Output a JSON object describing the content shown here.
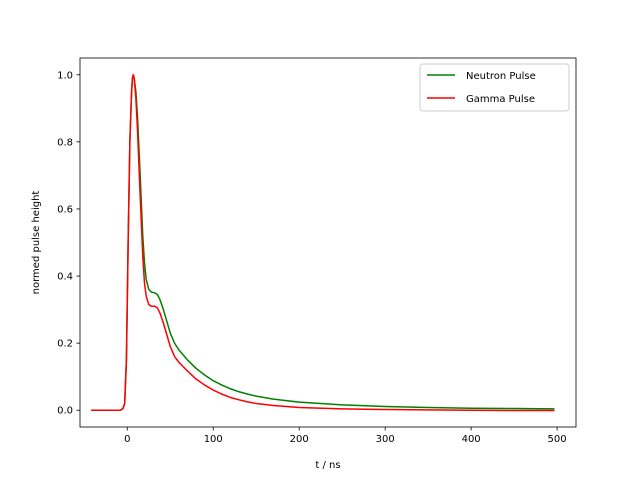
{
  "chart_data": {
    "type": "line",
    "title": "",
    "xlabel": "t / ns",
    "ylabel": "normed pulse height",
    "xlim": [
      -55,
      522
    ],
    "ylim": [
      -0.05,
      1.05
    ],
    "x_ticks": [
      0,
      100,
      200,
      300,
      400,
      500
    ],
    "y_ticks": [
      0.0,
      0.2,
      0.4,
      0.6,
      0.8,
      1.0
    ],
    "x_tick_labels": [
      "0",
      "100",
      "200",
      "300",
      "400",
      "500"
    ],
    "y_tick_labels": [
      "0.0",
      "0.2",
      "0.4",
      "0.6",
      "0.8",
      "1.0"
    ],
    "grid": false,
    "legend_position": "top-right",
    "series": [
      {
        "name": "Neutron Pulse",
        "color": "#008000",
        "points": [
          [
            -42,
            0.0
          ],
          [
            -20,
            0.0
          ],
          [
            -8,
            0.0
          ],
          [
            -5,
            0.005
          ],
          [
            -3,
            0.02
          ],
          [
            -1,
            0.15
          ],
          [
            1,
            0.5
          ],
          [
            3,
            0.8
          ],
          [
            5,
            0.95
          ],
          [
            6,
            0.99
          ],
          [
            7,
            1.0
          ],
          [
            8,
            0.99
          ],
          [
            10,
            0.95
          ],
          [
            12,
            0.87
          ],
          [
            15,
            0.7
          ],
          [
            18,
            0.52
          ],
          [
            20,
            0.44
          ],
          [
            22,
            0.39
          ],
          [
            25,
            0.36
          ],
          [
            28,
            0.352
          ],
          [
            32,
            0.35
          ],
          [
            35,
            0.345
          ],
          [
            38,
            0.33
          ],
          [
            42,
            0.3
          ],
          [
            46,
            0.265
          ],
          [
            50,
            0.23
          ],
          [
            55,
            0.2
          ],
          [
            60,
            0.18
          ],
          [
            65,
            0.165
          ],
          [
            70,
            0.15
          ],
          [
            80,
            0.125
          ],
          [
            90,
            0.105
          ],
          [
            100,
            0.088
          ],
          [
            110,
            0.075
          ],
          [
            120,
            0.064
          ],
          [
            130,
            0.055
          ],
          [
            140,
            0.048
          ],
          [
            150,
            0.042
          ],
          [
            170,
            0.033
          ],
          [
            200,
            0.024
          ],
          [
            250,
            0.016
          ],
          [
            300,
            0.011
          ],
          [
            350,
            0.008
          ],
          [
            400,
            0.006
          ],
          [
            450,
            0.005
          ],
          [
            497,
            0.004
          ]
        ]
      },
      {
        "name": "Gamma Pulse",
        "color": "#ff0000",
        "points": [
          [
            -42,
            0.0
          ],
          [
            -20,
            0.0
          ],
          [
            -8,
            0.0
          ],
          [
            -5,
            0.005
          ],
          [
            -3,
            0.02
          ],
          [
            -1,
            0.15
          ],
          [
            1,
            0.5
          ],
          [
            3,
            0.8
          ],
          [
            5,
            0.95
          ],
          [
            6,
            0.99
          ],
          [
            7,
            1.0
          ],
          [
            8,
            0.99
          ],
          [
            10,
            0.93
          ],
          [
            12,
            0.83
          ],
          [
            15,
            0.64
          ],
          [
            18,
            0.46
          ],
          [
            20,
            0.38
          ],
          [
            22,
            0.34
          ],
          [
            25,
            0.315
          ],
          [
            28,
            0.31
          ],
          [
            32,
            0.31
          ],
          [
            35,
            0.305
          ],
          [
            38,
            0.29
          ],
          [
            42,
            0.26
          ],
          [
            46,
            0.225
          ],
          [
            50,
            0.19
          ],
          [
            55,
            0.16
          ],
          [
            60,
            0.143
          ],
          [
            65,
            0.13
          ],
          [
            70,
            0.117
          ],
          [
            80,
            0.093
          ],
          [
            90,
            0.075
          ],
          [
            100,
            0.06
          ],
          [
            110,
            0.048
          ],
          [
            120,
            0.038
          ],
          [
            130,
            0.031
          ],
          [
            140,
            0.025
          ],
          [
            150,
            0.02
          ],
          [
            170,
            0.014
          ],
          [
            200,
            0.008
          ],
          [
            250,
            0.004
          ],
          [
            300,
            0.002
          ],
          [
            350,
            0.001
          ],
          [
            400,
            0.0
          ],
          [
            450,
            -0.001
          ],
          [
            497,
            -0.001
          ]
        ]
      }
    ]
  }
}
